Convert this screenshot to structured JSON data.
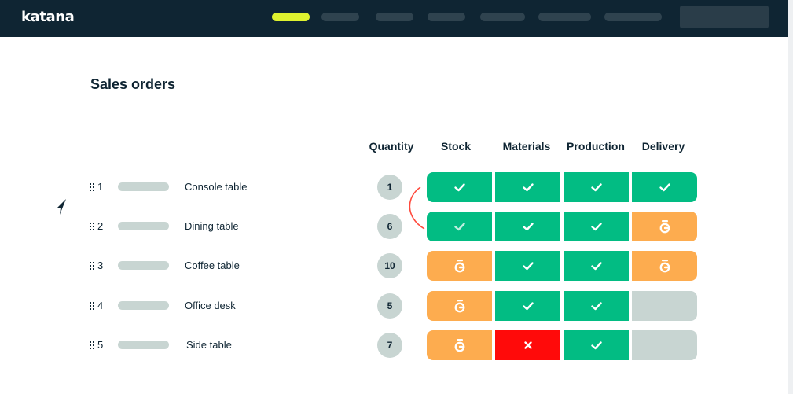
{
  "app": {
    "brand": "katana"
  },
  "page": {
    "title": "Sales orders"
  },
  "columns": {
    "quantity": "Quantity",
    "stock": "Stock",
    "materials": "Materials",
    "production": "Production",
    "delivery": "Delivery"
  },
  "status_colors": {
    "done": "#02bc83",
    "pending": "#fdac4f",
    "blocked": "#ff0a0a",
    "empty": "#c8d5d2"
  },
  "status_icons": {
    "done": "checkmark-icon",
    "pending": "clock-icon",
    "blocked": "cross-icon",
    "empty": "none"
  },
  "orders": [
    {
      "num": "1",
      "product": "Console table",
      "quantity": "1",
      "stock": "done",
      "materials": "done",
      "production": "done",
      "delivery": "done"
    },
    {
      "num": "2",
      "product": "Dining table",
      "quantity": "6",
      "stock": "done",
      "materials": "done",
      "production": "done",
      "delivery": "pending"
    },
    {
      "num": "3",
      "product": "Coffee table",
      "quantity": "10",
      "stock": "pending",
      "materials": "done",
      "production": "done",
      "delivery": "pending"
    },
    {
      "num": "4",
      "product": "Office desk",
      "quantity": "5",
      "stock": "pending",
      "materials": "done",
      "production": "done",
      "delivery": "empty"
    },
    {
      "num": "5",
      "product": "Side table",
      "quantity": "7",
      "stock": "pending",
      "materials": "blocked",
      "production": "done",
      "delivery": "empty"
    }
  ]
}
